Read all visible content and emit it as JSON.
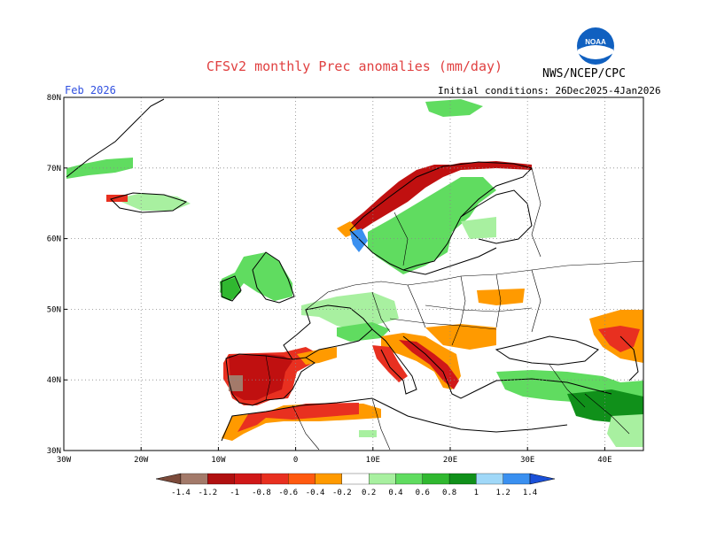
{
  "title": "CFSv2 monthly Prec anomalies (mm/day)",
  "agency": "NWS/NCEP/CPC",
  "logo_text": "NOAA",
  "month_label": "Feb 2026",
  "initial_conditions": "Initial conditions: 26Dec2025-4Jan2026",
  "map": {
    "lon_range": [
      -30,
      45
    ],
    "lat_range": [
      30,
      80
    ],
    "lat_labels": [
      "80N",
      "70N",
      "60N",
      "50N",
      "40N",
      "30N"
    ],
    "lon_labels": [
      "30W",
      "20W",
      "10W",
      "0",
      "10E",
      "20E",
      "30E",
      "40E"
    ]
  },
  "legend": {
    "labels": [
      "-1.4",
      "-1.2",
      "-1",
      "-0.8",
      "-0.6",
      "-0.4",
      "-0.2",
      "0.2",
      "0.4",
      "0.6",
      "0.8",
      "1",
      "1.2",
      "1.4"
    ],
    "colors": [
      "#7b4a3a",
      "#a37a6a",
      "#b01010",
      "#d01818",
      "#e83020",
      "#ff5a10",
      "#ff9a00",
      "#ffffff",
      "#a8f0a0",
      "#60dc60",
      "#30b830",
      "#10901a",
      "#a0d8f8",
      "#3a90f0",
      "#1a50d8"
    ]
  },
  "anomaly_regions": [
    {
      "name": "Iberia dry",
      "color": "#e83020"
    },
    {
      "name": "Iberia core",
      "color": "#c01010"
    },
    {
      "name": "North Africa dry",
      "color": "#e83020"
    },
    {
      "name": "Norway coast dry",
      "color": "#c01010"
    },
    {
      "name": "Scandinavia wet",
      "color": "#60dc60"
    },
    {
      "name": "British Isles wet",
      "color": "#30b830"
    },
    {
      "name": "Central Europe wet",
      "color": "#a8f0a0"
    },
    {
      "name": "Balkans dry",
      "color": "#d01818"
    },
    {
      "name": "Turkey wet",
      "color": "#60dc60"
    },
    {
      "name": "Middle East wet",
      "color": "#10901a"
    },
    {
      "name": "Caucasus dry",
      "color": "#ff9a00"
    },
    {
      "name": "Southern Norway wet",
      "color": "#3a90f0"
    }
  ]
}
